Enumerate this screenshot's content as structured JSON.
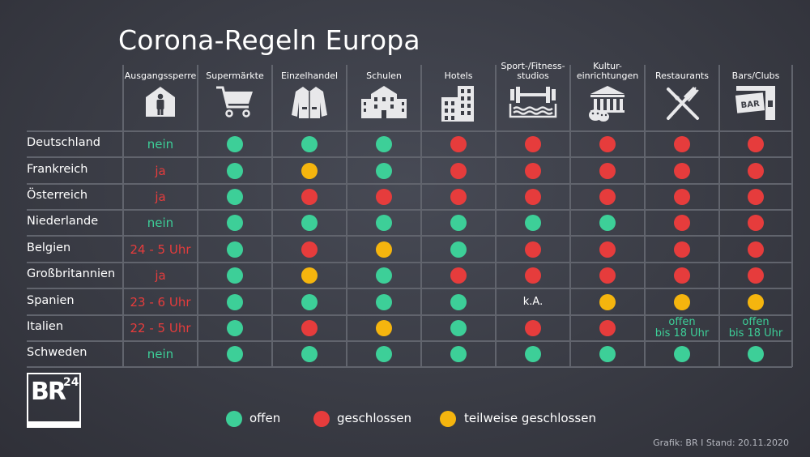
{
  "title": "Corona-Regeln Europa",
  "colors": {
    "offen": "#3dcf98",
    "geschlossen": "#e63c3c",
    "teilweise": "#f5b50e",
    "green_text": "#3dcf98",
    "red_text": "#e63c3c"
  },
  "columns": [
    {
      "label": "Ausgangssperre",
      "icon": "person-house-icon"
    },
    {
      "label": "Supermärkte",
      "icon": "shopping-cart-icon"
    },
    {
      "label": "Einzelhandel",
      "icon": "jacket-icon"
    },
    {
      "label": "Schulen",
      "icon": "school-building-icon"
    },
    {
      "label": "Hotels",
      "icon": "hotel-building-icon"
    },
    {
      "label": "Sport-/Fitness-\nstudios",
      "icon": "dumbbell-pool-icon"
    },
    {
      "label": "Kultur-\neinrichtungen",
      "icon": "museum-masks-icon"
    },
    {
      "label": "Restaurants",
      "icon": "knife-fork-icon"
    },
    {
      "label": "Bars/Clubs",
      "icon": "bar-sign-icon"
    }
  ],
  "rows": [
    {
      "country": "Deutschland",
      "curfew": {
        "text": "nein",
        "color": "green"
      },
      "cells": [
        "o",
        "o",
        "o",
        "g",
        "g",
        "g",
        "g",
        "g"
      ]
    },
    {
      "country": "Frankreich",
      "curfew": {
        "text": "ja",
        "color": "red"
      },
      "cells": [
        "o",
        "t",
        "o",
        "g",
        "g",
        "g",
        "g",
        "g"
      ]
    },
    {
      "country": "Österreich",
      "curfew": {
        "text": "ja",
        "color": "red"
      },
      "cells": [
        "o",
        "g",
        "g",
        "g",
        "g",
        "g",
        "g",
        "g"
      ]
    },
    {
      "country": "Niederlande",
      "curfew": {
        "text": "nein",
        "color": "green"
      },
      "cells": [
        "o",
        "o",
        "o",
        "o",
        "o",
        "o",
        "g",
        "g"
      ]
    },
    {
      "country": "Belgien",
      "curfew": {
        "text": "24 - 5 Uhr",
        "color": "red"
      },
      "cells": [
        "o",
        "g",
        "t",
        "o",
        "g",
        "g",
        "g",
        "g"
      ]
    },
    {
      "country": "Großbritannien",
      "curfew": {
        "text": "ja",
        "color": "red"
      },
      "cells": [
        "o",
        "t",
        "o",
        "g",
        "g",
        "g",
        "g",
        "g"
      ]
    },
    {
      "country": "Spanien",
      "curfew": {
        "text": "23 - 6 Uhr",
        "color": "red"
      },
      "cells": [
        "o",
        "o",
        "o",
        "o",
        "k.A.",
        "t",
        "t",
        "t"
      ]
    },
    {
      "country": "Italien",
      "curfew": {
        "text": "22 - 5 Uhr",
        "color": "red"
      },
      "cells": [
        "o",
        "g",
        "t",
        "o",
        "g",
        "g",
        "offen\nbis 18 Uhr",
        "offen\nbis 18 Uhr"
      ]
    },
    {
      "country": "Schweden",
      "curfew": {
        "text": "nein",
        "color": "green"
      },
      "cells": [
        "o",
        "o",
        "o",
        "o",
        "o",
        "o",
        "o",
        "o"
      ]
    }
  ],
  "legend": [
    {
      "key": "o",
      "label": "offen"
    },
    {
      "key": "g",
      "label": "geschlossen"
    },
    {
      "key": "t",
      "label": "teilweise geschlossen"
    }
  ],
  "logo": {
    "text": "BR",
    "sup": "24"
  },
  "footer": "Grafik: BR  I  Stand: 20.11.2020"
}
